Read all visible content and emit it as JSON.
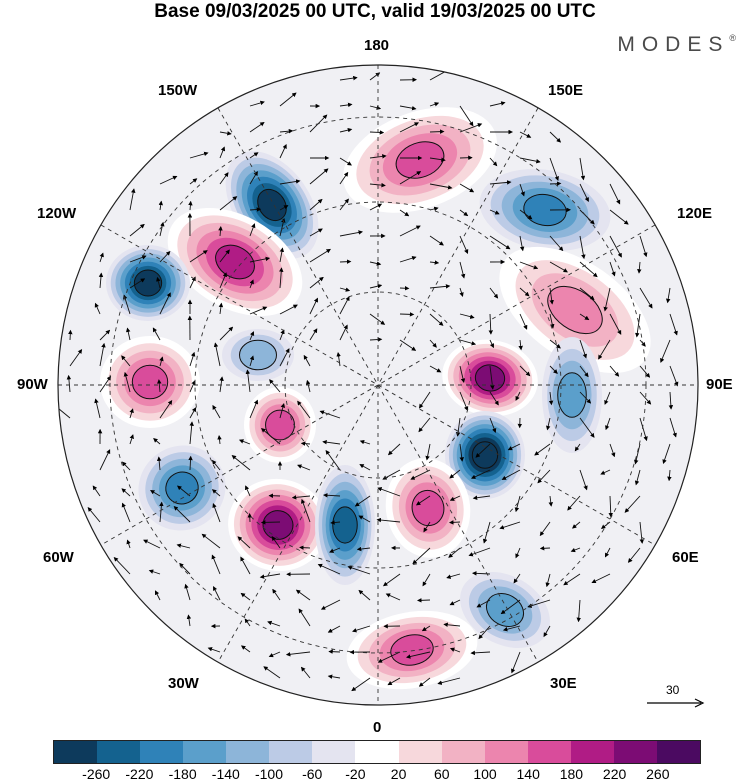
{
  "title": "Base 09/03/2025 00 UTC, valid 19/03/2025 00 UTC",
  "brand": "MODES",
  "brand_mark": "®",
  "longitude_labels": {
    "top": "180",
    "bottom": "0",
    "left": "90W",
    "right": "90E",
    "upper_left": "150W",
    "upper_right": "150E",
    "mid_left": "120W",
    "mid_right": "120E",
    "lower_left": "60W",
    "lower_right": "60E",
    "bottom_left": "30W",
    "bottom_right": "30E"
  },
  "reference_vector": {
    "value": "30"
  },
  "colorbar": {
    "ticks": [
      "-260",
      "-220",
      "-180",
      "-140",
      "-100",
      "-60",
      "-20",
      "20",
      "60",
      "100",
      "140",
      "180",
      "220",
      "260"
    ],
    "colors": [
      "#0d3a5c",
      "#14628f",
      "#2f82b8",
      "#5b9fcb",
      "#8db5d9",
      "#bccbe6",
      "#e4e4f0",
      "#ffffff",
      "#f7d8dc",
      "#f2b2c4",
      "#ec85ae",
      "#d94c9b",
      "#b01c85",
      "#7c0c74",
      "#4b0a61"
    ]
  },
  "anomaly_centers": [
    {
      "type": "negative",
      "level": -220
    },
    {
      "type": "positive",
      "level": 180
    },
    {
      "type": "negative",
      "level": -220
    },
    {
      "type": "positive",
      "level": 140
    },
    {
      "type": "positive",
      "level": 140
    },
    {
      "type": "negative",
      "level": -140
    },
    {
      "type": "positive",
      "level": 220
    },
    {
      "type": "negative",
      "level": -260
    },
    {
      "type": "positive",
      "level": 220
    },
    {
      "type": "negative",
      "level": -180
    },
    {
      "type": "positive",
      "level": 140
    },
    {
      "type": "negative",
      "level": -140
    },
    {
      "type": "positive",
      "level": 100
    },
    {
      "type": "negative",
      "level": -100
    },
    {
      "type": "positive",
      "level": 140
    },
    {
      "type": "negative",
      "level": -100
    },
    {
      "type": "positive",
      "level": 140
    },
    {
      "type": "negative",
      "level": -60
    }
  ]
}
